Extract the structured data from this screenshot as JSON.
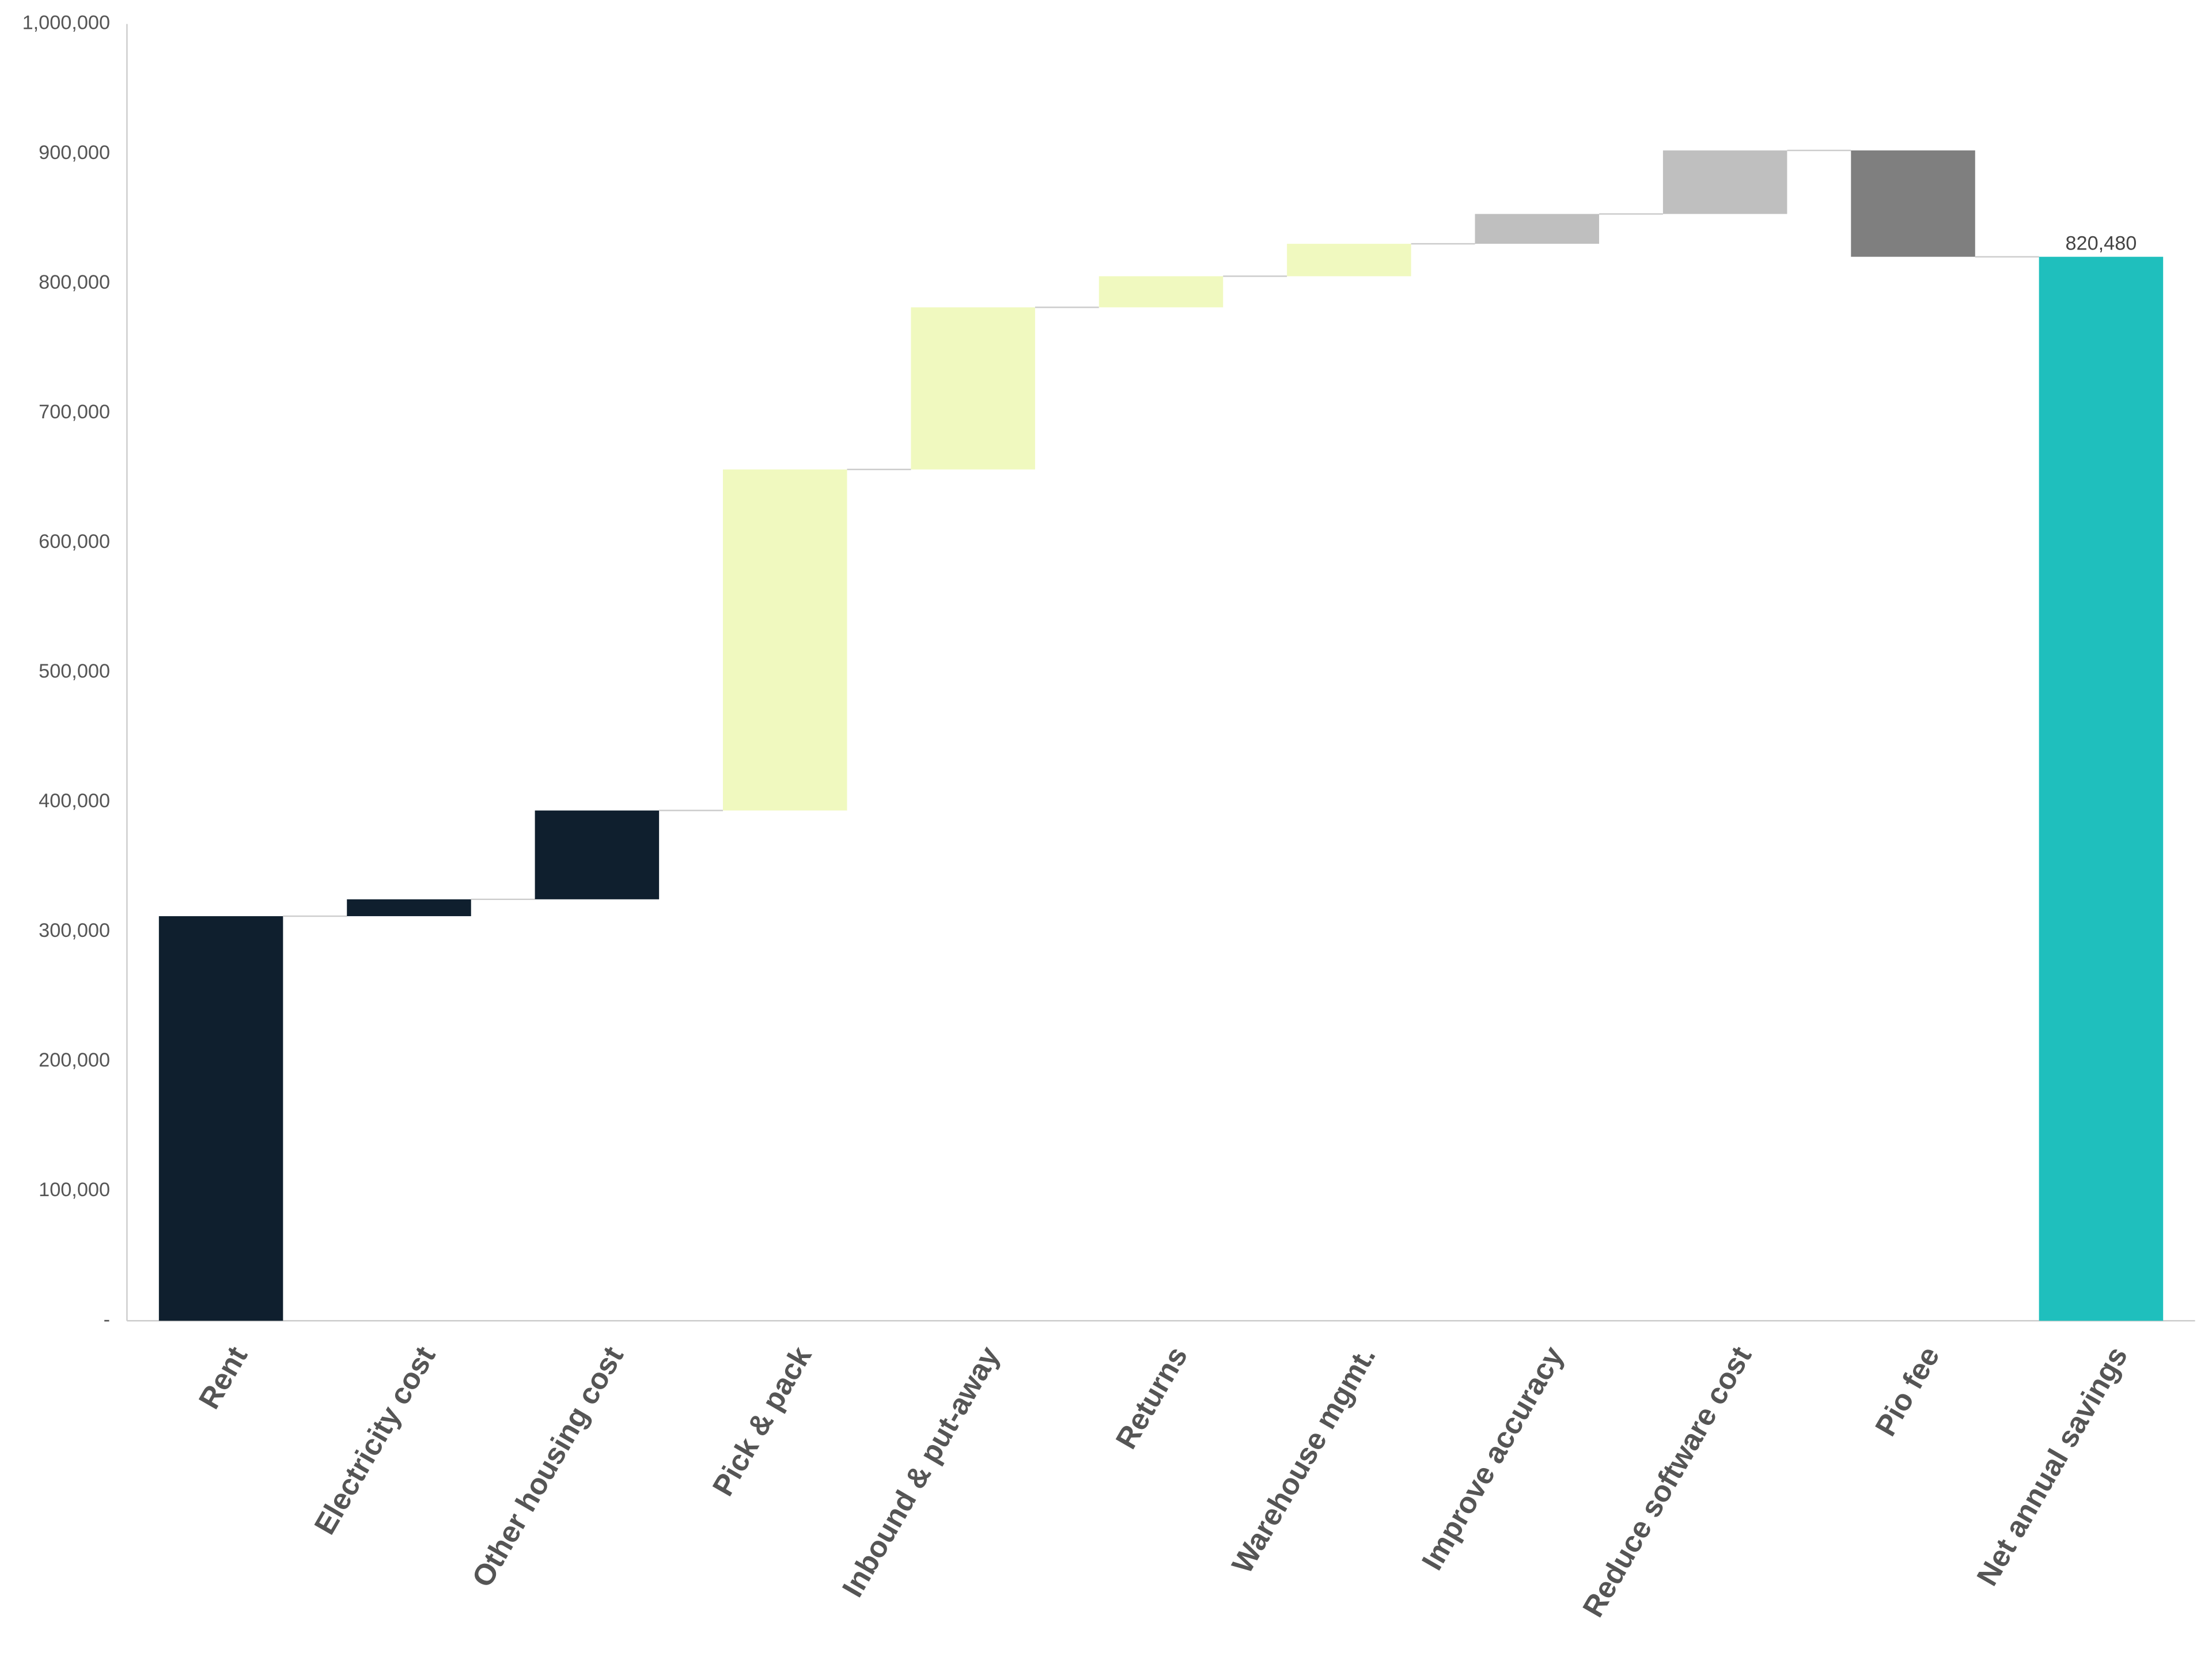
{
  "chart_data": {
    "type": "waterfall",
    "categories": [
      "Rent",
      "Electricity cost",
      "Other housing cost",
      "Pick & pack",
      "Inbound & put-away",
      "Returns",
      "Warehouse mgmt.",
      "Improve accuracy",
      "Reduce software cost",
      "Pio fee",
      "Net annual savings"
    ],
    "values": [
      312000,
      13000,
      68500,
      263000,
      125000,
      24000,
      25000,
      23000,
      49000,
      -82020,
      820480
    ],
    "measures": [
      "relative",
      "relative",
      "relative",
      "relative",
      "relative",
      "relative",
      "relative",
      "relative",
      "relative",
      "relative",
      "total"
    ],
    "colors": [
      "#0f1f2e",
      "#0f1f2e",
      "#0f1f2e",
      "#f0f9bf",
      "#f0f9bf",
      "#f0f9bf",
      "#f0f9bf",
      "#bfbfbf",
      "#bfbfbf",
      "#7f7f7f",
      "#1fbfbd"
    ],
    "value_labels": [
      null,
      null,
      null,
      null,
      null,
      null,
      null,
      null,
      null,
      null,
      "820,480"
    ],
    "ylim": [
      0,
      1000000
    ],
    "yticks": [
      {
        "value": 0,
        "label": "-"
      },
      {
        "value": 100000,
        "label": "100,000"
      },
      {
        "value": 200000,
        "label": "200,000"
      },
      {
        "value": 300000,
        "label": "300,000"
      },
      {
        "value": 400000,
        "label": "400,000"
      },
      {
        "value": 500000,
        "label": "500,000"
      },
      {
        "value": 600000,
        "label": "600,000"
      },
      {
        "value": 700000,
        "label": "700,000"
      },
      {
        "value": 800000,
        "label": "800,000"
      },
      {
        "value": 900000,
        "label": "900,000"
      },
      {
        "value": 1000000,
        "label": "1,000,000"
      }
    ],
    "grid": false
  }
}
